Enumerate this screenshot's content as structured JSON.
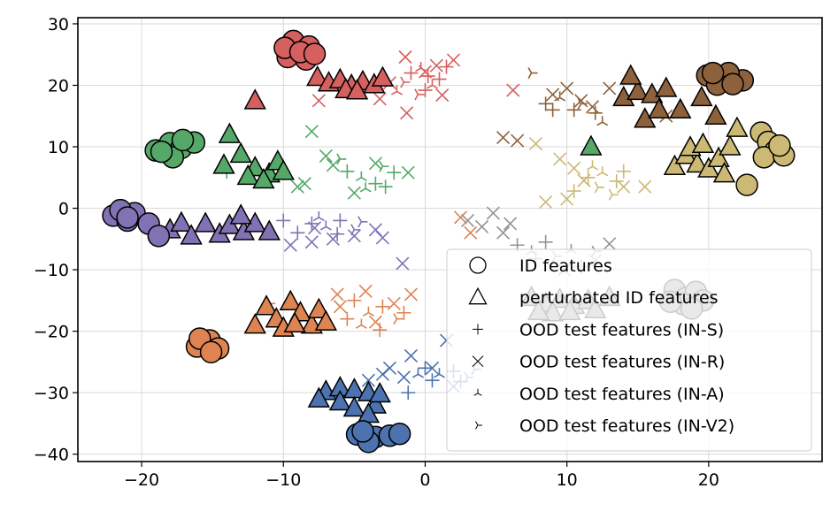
{
  "chart_data": {
    "type": "scatter",
    "title": "",
    "xlabel": "",
    "ylabel": "",
    "xlim": [
      -24.5,
      28
    ],
    "ylim": [
      -41.2,
      31
    ],
    "grid": true,
    "x_ticks": [
      -20,
      -10,
      0,
      10,
      20
    ],
    "y_ticks": [
      30,
      20,
      10,
      0,
      -10,
      -20,
      -30,
      -40
    ],
    "x_tick_labels": [
      "−20",
      "−10",
      "0",
      "10",
      "20"
    ],
    "y_tick_labels": [
      "30",
      "20",
      "10",
      "0",
      "−10",
      "−20",
      "−30",
      "−40"
    ],
    "legend": {
      "position": "lower-right",
      "entries": [
        {
          "label": "ID features",
          "marker": "circle"
        },
        {
          "label": "perturbated ID features",
          "marker": "triangle"
        },
        {
          "label": "OOD test features (IN-S)",
          "marker": "plus"
        },
        {
          "label": "OOD test features (IN-R)",
          "marker": "x"
        },
        {
          "label": "OOD test features (IN-A)",
          "marker": "tri-down"
        },
        {
          "label": "OOD test features (IN-V2)",
          "marker": "tri-left"
        }
      ]
    },
    "classes": [
      {
        "color": "#d65f5f",
        "id": [
          [
            -9.3,
            27.2
          ],
          [
            -8.2,
            26.3
          ],
          [
            -9.7,
            24.6
          ],
          [
            -8.4,
            24.2
          ],
          [
            -9.9,
            26.1
          ],
          [
            -8.8,
            25.4
          ],
          [
            -7.8,
            25.1
          ]
        ],
        "perturbated": [
          [
            -12,
            17.5
          ],
          [
            -7.6,
            21.3
          ],
          [
            -6.8,
            20.4
          ],
          [
            -6,
            20.9
          ],
          [
            -5.2,
            20
          ],
          [
            -4.4,
            20.6
          ],
          [
            -3.6,
            20.1
          ],
          [
            -3,
            21.2
          ],
          [
            -5.6,
            19.3
          ],
          [
            -4.8,
            19.1
          ]
        ],
        "ood": [
          [
            -1,
            22
          ],
          [
            0.5,
            20
          ],
          [
            1.5,
            23
          ],
          [
            -0.5,
            18.5
          ],
          [
            0.2,
            21.5
          ],
          [
            -2,
            19
          ],
          [
            1,
            21
          ],
          [
            -1.5,
            20.5
          ],
          [
            0,
            19.2
          ],
          [
            -0.3,
            22.8
          ]
        ],
        "ood_x": [
          [
            -1.4,
            24.6
          ],
          [
            0.8,
            23.2
          ],
          [
            -2.5,
            20.4
          ],
          [
            1.2,
            18.4
          ],
          [
            6.2,
            19.2
          ],
          [
            -7.5,
            17.5
          ],
          [
            -3.2,
            17.8
          ],
          [
            -1.3,
            15.5
          ],
          [
            0,
            22.2
          ],
          [
            2,
            24.1
          ]
        ]
      },
      {
        "color": "#8c613c",
        "id": [
          [
            19.9,
            21.6
          ],
          [
            21,
            21.3
          ],
          [
            22.4,
            20.8
          ],
          [
            21.4,
            22
          ],
          [
            20.6,
            20.1
          ],
          [
            21.7,
            20.2
          ],
          [
            20.3,
            22
          ]
        ],
        "perturbated": [
          [
            14,
            18
          ],
          [
            15,
            19
          ],
          [
            16,
            18.5
          ],
          [
            17,
            19.5
          ],
          [
            15.5,
            14.5
          ],
          [
            16.5,
            16
          ],
          [
            18,
            16
          ],
          [
            19.5,
            18
          ],
          [
            20.5,
            15
          ],
          [
            14.5,
            21.5
          ]
        ],
        "ood": [
          [
            8.5,
            17
          ],
          [
            9.5,
            18
          ],
          [
            10.5,
            16
          ],
          [
            11,
            17
          ],
          [
            12,
            15.5
          ],
          [
            12.5,
            14
          ],
          [
            9,
            16
          ],
          [
            7.5,
            22
          ]
        ],
        "ood_x": [
          [
            9,
            18.5
          ],
          [
            10,
            19.5
          ],
          [
            11,
            17.5
          ],
          [
            11.8,
            16.5
          ],
          [
            13,
            19.5
          ],
          [
            17,
            15
          ],
          [
            5.5,
            11.5
          ],
          [
            6.5,
            11
          ]
        ]
      },
      {
        "color": "#55a868",
        "id": [
          [
            -19,
            9.4
          ],
          [
            -18,
            10.6
          ],
          [
            -17.2,
            9.8
          ],
          [
            -17.8,
            8.3
          ],
          [
            -16.3,
            10.7
          ],
          [
            -18.6,
            9.2
          ],
          [
            -17.1,
            11.1
          ]
        ],
        "perturbated": [
          [
            -13.8,
            12
          ],
          [
            -14.2,
            7
          ],
          [
            -13,
            8.8
          ],
          [
            -12,
            6.6
          ],
          [
            -11,
            5.6
          ],
          [
            -10.4,
            7.6
          ],
          [
            -12.5,
            5.2
          ],
          [
            -11.4,
            4.6
          ],
          [
            -10,
            6
          ],
          [
            11.7,
            10
          ]
        ],
        "ood": [
          [
            -5.5,
            6
          ],
          [
            -4.5,
            5
          ],
          [
            -3.5,
            4
          ],
          [
            -3,
            6.8
          ],
          [
            -2.2,
            5.8
          ],
          [
            -4.2,
            3.2
          ],
          [
            -2.8,
            3.5
          ],
          [
            -6,
            8
          ],
          [
            -14,
            6
          ]
        ],
        "ood_x": [
          [
            -8,
            12.5
          ],
          [
            -7,
            8.5
          ],
          [
            -6.5,
            7
          ],
          [
            -5,
            2.5
          ],
          [
            -8.5,
            4
          ],
          [
            -1.2,
            5.8
          ],
          [
            -3.5,
            7.3
          ],
          [
            -9,
            3.5
          ]
        ]
      },
      {
        "color": "#dd8452",
        "id": [
          [
            -16.1,
            -22.5
          ],
          [
            -15.2,
            -21.5
          ],
          [
            -14.6,
            -22.8
          ],
          [
            -15.9,
            -21.2
          ],
          [
            -15.1,
            -23.4
          ]
        ],
        "perturbated": [
          [
            -12,
            -19
          ],
          [
            -11.2,
            -16
          ],
          [
            -10.5,
            -18
          ],
          [
            -9.5,
            -15.2
          ],
          [
            -8.8,
            -17
          ],
          [
            -8,
            -19
          ],
          [
            -7.5,
            -16.5
          ],
          [
            -7,
            -18.5
          ],
          [
            -10,
            -19.5
          ],
          [
            -9.2,
            -18.8
          ]
        ],
        "ood": [
          [
            -5,
            -15
          ],
          [
            -4,
            -17
          ],
          [
            -3,
            -16
          ],
          [
            -2,
            -18
          ],
          [
            -1.5,
            -17
          ],
          [
            -4.5,
            -19
          ],
          [
            -3.2,
            -19.8
          ],
          [
            -11,
            -15.5
          ],
          [
            -5.5,
            -18
          ]
        ],
        "ood_x": [
          [
            -6,
            -16
          ],
          [
            -4.2,
            -13.5
          ],
          [
            -3.5,
            -18.5
          ],
          [
            -2.2,
            -15.5
          ],
          [
            -1,
            -14
          ],
          [
            2.5,
            -1.5
          ],
          [
            -6.2,
            -14
          ],
          [
            3.2,
            -4
          ]
        ]
      },
      {
        "color": "#8172b3",
        "id": [
          [
            -22,
            -1.2
          ],
          [
            -21,
            -2
          ],
          [
            -20.5,
            -0.8
          ],
          [
            -21.5,
            -0.3
          ],
          [
            -21,
            -1.5
          ],
          [
            -19.5,
            -2.5
          ],
          [
            -18.8,
            -4.5
          ]
        ],
        "perturbated": [
          [
            -18,
            -3.5
          ],
          [
            -17.2,
            -2.4
          ],
          [
            -16.5,
            -4.5
          ],
          [
            -15.5,
            -2.5
          ],
          [
            -14.5,
            -4.2
          ],
          [
            -13.8,
            -2.8
          ],
          [
            -12.8,
            -3.8
          ],
          [
            -12,
            -2.5
          ],
          [
            -11,
            -3.8
          ],
          [
            -13,
            -1.2
          ]
        ],
        "ood": [
          [
            -8,
            -2.5
          ],
          [
            -7,
            -3
          ],
          [
            -6,
            -2
          ],
          [
            -5,
            -3.5
          ],
          [
            -9,
            -4
          ],
          [
            -7.5,
            -1.5
          ],
          [
            -6.2,
            -4.2
          ],
          [
            -4.5,
            -2.2
          ],
          [
            -10,
            -2
          ]
        ],
        "ood_x": [
          [
            -9.5,
            -6
          ],
          [
            -6.5,
            -5
          ],
          [
            -5,
            -4.5
          ],
          [
            -3.5,
            -3.5
          ],
          [
            -8,
            -5.5
          ],
          [
            -7.8,
            -3.2
          ],
          [
            -3,
            -4.8
          ],
          [
            -1.6,
            -9
          ]
        ]
      },
      {
        "color": "#4c72b0",
        "id": [
          [
            -4.8,
            -36.8
          ],
          [
            -3.5,
            -37.2
          ],
          [
            -2.5,
            -37
          ],
          [
            -4,
            -38
          ],
          [
            -1.8,
            -36.7
          ],
          [
            -4.4,
            -36.3
          ]
        ],
        "perturbated": [
          [
            -7,
            -29.8
          ],
          [
            -6,
            -29.2
          ],
          [
            -5,
            -29.5
          ],
          [
            -4,
            -30
          ],
          [
            -3.5,
            -32
          ],
          [
            -6,
            -31.5
          ],
          [
            -5,
            -32.5
          ],
          [
            -4,
            -33.5
          ],
          [
            -7.5,
            -31
          ],
          [
            -3.2,
            -30.2
          ]
        ],
        "ood": [
          [
            0,
            -26
          ],
          [
            1,
            -27
          ],
          [
            2,
            -26.5
          ],
          [
            3,
            -27.5
          ],
          [
            0.5,
            -28
          ],
          [
            -0.5,
            -27
          ],
          [
            2.5,
            -28.2
          ],
          [
            3.5,
            -26.2
          ],
          [
            -1.2,
            -30
          ]
        ],
        "ood_x": [
          [
            -2.5,
            -26
          ],
          [
            -1,
            -24
          ],
          [
            0.5,
            -26
          ],
          [
            1.5,
            -21.5
          ],
          [
            -3,
            -27
          ],
          [
            2,
            -29
          ],
          [
            -1.5,
            -27.5
          ],
          [
            -4,
            -28
          ]
        ]
      },
      {
        "color": "#ccb974",
        "id": [
          [
            23.7,
            12.3
          ],
          [
            24.2,
            10.8
          ],
          [
            24.7,
            9.3
          ],
          [
            23.9,
            8.3
          ],
          [
            25.3,
            8.6
          ],
          [
            25,
            10.2
          ],
          [
            22.7,
            3.8
          ]
        ],
        "perturbated": [
          [
            17.6,
            6.8
          ],
          [
            18.4,
            8.6
          ],
          [
            19.2,
            7.2
          ],
          [
            20,
            6.4
          ],
          [
            20.7,
            8.1
          ],
          [
            18.7,
            9.9
          ],
          [
            21.1,
            5.6
          ],
          [
            19.6,
            10.4
          ],
          [
            21.5,
            10
          ],
          [
            22,
            13
          ]
        ],
        "ood": [
          [
            11.5,
            5
          ],
          [
            12.5,
            5.8
          ],
          [
            13.5,
            4.4
          ],
          [
            12.2,
            3.4
          ],
          [
            10.5,
            2.8
          ],
          [
            11.8,
            6.8
          ],
          [
            14,
            6
          ],
          [
            13.2,
            2.2
          ]
        ],
        "ood_x": [
          [
            9.5,
            8
          ],
          [
            10.5,
            6.5
          ],
          [
            11.2,
            4.5
          ],
          [
            10,
            1.5
          ],
          [
            8.5,
            1
          ],
          [
            7.8,
            10.5
          ],
          [
            14,
            3.5
          ],
          [
            15.5,
            3.5
          ]
        ]
      },
      {
        "color": "#939393",
        "id": [
          [
            17.6,
            -13.3
          ],
          [
            18.4,
            -14.6
          ],
          [
            19.1,
            -13.6
          ],
          [
            18.2,
            -15.6
          ],
          [
            19.6,
            -15
          ],
          [
            17.3,
            -15.2
          ],
          [
            18.8,
            -16.3
          ]
        ],
        "perturbated": [
          [
            7.5,
            -14.5
          ],
          [
            8.5,
            -15.5
          ],
          [
            9.5,
            -14.8
          ],
          [
            10.5,
            -15.8
          ],
          [
            11.5,
            -15
          ],
          [
            9,
            -17
          ],
          [
            10.2,
            -16.8
          ],
          [
            12,
            -16.5
          ],
          [
            8,
            -16.8
          ],
          [
            13,
            -14.5
          ]
        ],
        "ood": [
          [
            6.5,
            -6
          ],
          [
            7.5,
            -7
          ],
          [
            8.5,
            -5.5
          ],
          [
            9.2,
            -7.8
          ],
          [
            7.8,
            -8.2
          ],
          [
            10.3,
            -6.8
          ],
          [
            11,
            -9.5
          ],
          [
            12,
            -7
          ]
        ],
        "ood_x": [
          [
            3,
            -2
          ],
          [
            4,
            -3
          ],
          [
            4.8,
            -0.8
          ],
          [
            5.5,
            -4
          ],
          [
            6,
            -2.5
          ],
          [
            9.8,
            -10
          ],
          [
            12,
            -8.5
          ],
          [
            13,
            -5.8
          ]
        ]
      }
    ]
  }
}
